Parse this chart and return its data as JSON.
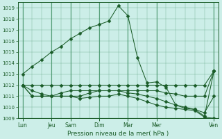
{
  "xlabel": "Pression niveau de la mer( hPa )",
  "ylim": [
    1009,
    1019.5
  ],
  "yticks": [
    1009,
    1010,
    1011,
    1012,
    1013,
    1014,
    1015,
    1016,
    1017,
    1018,
    1019
  ],
  "xtick_labels": [
    "Lun",
    "Jeu",
    "Sam",
    "Dim",
    "Mar",
    "Mer",
    "Ven"
  ],
  "xtick_positions": [
    0,
    3,
    5,
    8,
    11,
    14,
    20
  ],
  "n_points": 21,
  "bg_color": "#cceee8",
  "grid_color": "#4d9970",
  "line_color": "#1a5c28",
  "marker": "D",
  "marker_size": 2.5,
  "series": [
    [
      1013.0,
      1013.7,
      1014.3,
      1015.0,
      1015.5,
      1016.2,
      1016.7,
      1017.2,
      1017.5,
      1017.8,
      1019.2,
      1018.3,
      1014.5,
      1012.2,
      1012.3,
      1011.8,
      1010.2,
      1009.9,
      1009.8,
      1009.2,
      1013.3
    ],
    [
      1012.0,
      1012.0,
      1012.0,
      1012.0,
      1012.0,
      1012.0,
      1012.0,
      1012.0,
      1012.0,
      1012.0,
      1012.0,
      1012.0,
      1012.0,
      1012.0,
      1012.0,
      1012.0,
      1012.0,
      1012.0,
      1012.0,
      1012.0,
      1013.3
    ],
    [
      1012.0,
      1011.5,
      1011.2,
      1011.0,
      1011.3,
      1011.5,
      1011.5,
      1011.5,
      1011.5,
      1011.5,
      1011.5,
      1011.5,
      1011.5,
      1011.5,
      1011.5,
      1011.3,
      1011.2,
      1011.0,
      1011.0,
      1011.0,
      1013.3
    ],
    [
      1012.0,
      1011.0,
      1011.0,
      1011.0,
      1011.0,
      1011.0,
      1011.0,
      1011.3,
      1011.5,
      1011.5,
      1011.5,
      1011.3,
      1011.2,
      1011.0,
      1010.8,
      1010.5,
      1010.2,
      1010.0,
      1009.8,
      1009.5,
      1011.0
    ],
    [
      1012.0,
      1011.0,
      1011.0,
      1011.0,
      1011.0,
      1011.0,
      1010.8,
      1010.9,
      1011.0,
      1011.0,
      1011.2,
      1011.0,
      1010.8,
      1010.5,
      1010.2,
      1010.0,
      1009.9,
      1009.8,
      1009.7,
      1009.1,
      1009.0
    ]
  ]
}
